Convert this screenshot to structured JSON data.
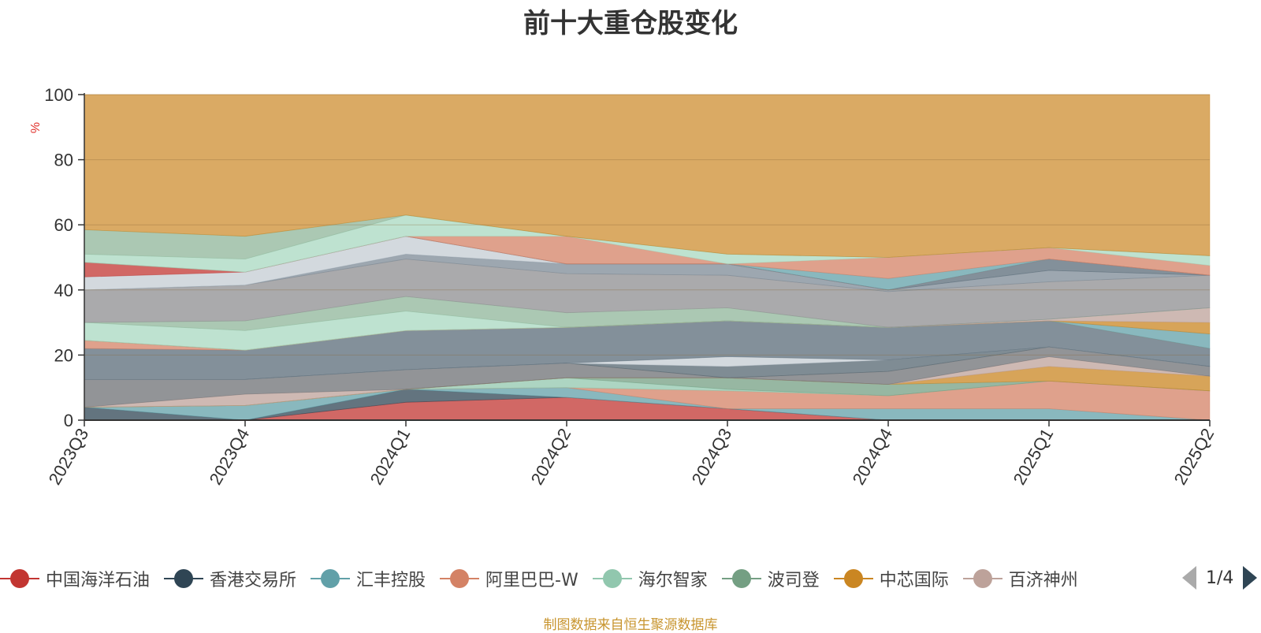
{
  "title": "前十大重仓股变化",
  "source": "制图数据来自恒生聚源数据库",
  "pager": {
    "text": "1/4"
  },
  "legend": [
    {
      "label": "中国海洋石油",
      "color": "#c23531"
    },
    {
      "label": "香港交易所",
      "color": "#2f4554"
    },
    {
      "label": "汇丰控股",
      "color": "#61a0a8"
    },
    {
      "label": "阿里巴巴-W",
      "color": "#d48265"
    },
    {
      "label": "海尔智家",
      "color": "#91c7ae"
    },
    {
      "label": "波司登",
      "color": "#749f83"
    },
    {
      "label": "中芯国际",
      "color": "#ca8622"
    },
    {
      "label": "百济神州",
      "color": "#bda29a"
    }
  ],
  "chart_data": {
    "type": "area",
    "stacked": true,
    "title": "前十大重仓股变化",
    "ylabel": "%",
    "ylim": [
      0,
      100
    ],
    "yticks": [
      0,
      20,
      40,
      60,
      80,
      100
    ],
    "categories": [
      "2023Q3",
      "2023Q4",
      "2024Q1",
      "2024Q2",
      "2024Q3",
      "2024Q4",
      "2025Q1",
      "2025Q2"
    ],
    "grid": true,
    "layers": [
      {
        "color": "#c23531",
        "top": [
          0,
          0,
          5.5,
          7,
          3.5,
          0,
          0,
          0
        ]
      },
      {
        "color": "#2f4554",
        "top": [
          4,
          0,
          9.5,
          7,
          3.5,
          0,
          0,
          0
        ]
      },
      {
        "color": "#61a0a8",
        "top": [
          4,
          4.5,
          9.5,
          10,
          3.5,
          3.5,
          3.5,
          0
        ]
      },
      {
        "color": "#d48265",
        "top": [
          4,
          4.5,
          9.5,
          10,
          9,
          7.5,
          12,
          9
        ]
      },
      {
        "color": "#91c7ae",
        "top": [
          4,
          4.5,
          9.5,
          13,
          9.5,
          7.5,
          12,
          9
        ]
      },
      {
        "color": "#749f83",
        "top": [
          4,
          4.5,
          9.5,
          13,
          13,
          11,
          12,
          9
        ]
      },
      {
        "color": "#ca8622",
        "top": [
          4,
          4.5,
          9.5,
          13,
          13,
          11,
          16.5,
          13.5
        ]
      },
      {
        "color": "#bda29a",
        "top": [
          4,
          8,
          9.5,
          13,
          13,
          11,
          19.5,
          13.5
        ]
      },
      {
        "color": "#6e7074",
        "top": [
          12.5,
          12.5,
          15.5,
          17.5,
          13,
          15,
          22.5,
          16.5
        ]
      },
      {
        "color": "#546570",
        "top": [
          12.5,
          12.5,
          15.5,
          17.5,
          16.5,
          18.5,
          22.5,
          16.5
        ]
      },
      {
        "color": "#c4ccd3",
        "top": [
          12.5,
          12.5,
          15.5,
          17.5,
          19.5,
          18.5,
          22.5,
          16.5
        ]
      },
      {
        "color": "#5a6b78",
        "top": [
          22,
          21.5,
          27.5,
          28.5,
          30.5,
          28.5,
          30.5,
          22
        ]
      },
      {
        "color": "#d48265",
        "top": [
          24.5,
          21.5,
          27.5,
          28.5,
          30.5,
          28.5,
          30.5,
          22
        ]
      },
      {
        "color": "#61a0a8",
        "top": [
          24.5,
          21.5,
          27.5,
          28.5,
          30.5,
          28.5,
          30.5,
          26.5
        ]
      },
      {
        "color": "#ca8622",
        "top": [
          24.5,
          21.5,
          27.5,
          28.5,
          30.5,
          28.5,
          30.5,
          30
        ]
      },
      {
        "color": "#bda29a",
        "top": [
          24.5,
          21.5,
          27.5,
          28.5,
          30.5,
          28.5,
          31,
          34.5
        ]
      },
      {
        "color": "#a8d8c0",
        "top": [
          30,
          27.5,
          33.5,
          28.5,
          30.5,
          28.5,
          31,
          34.5
        ]
      },
      {
        "color": "#8fb69a",
        "top": [
          30,
          30.5,
          38,
          33,
          34.5,
          28.5,
          31,
          34.5
        ]
      },
      {
        "color": "#8d8e90",
        "top": [
          40,
          41.5,
          49.5,
          45,
          44.5,
          39.5,
          42.5,
          44.5
        ]
      },
      {
        "color": "#7c8a95",
        "top": [
          40,
          41.5,
          51,
          48,
          48,
          40,
          46,
          44.5
        ]
      },
      {
        "color": "#5a6b78",
        "top": [
          40,
          41.5,
          51,
          48,
          48,
          40,
          49.5,
          44.5
        ]
      },
      {
        "color": "#c4ccd3",
        "top": [
          44,
          45.5,
          56.5,
          48,
          48,
          40,
          49.5,
          44.5
        ]
      },
      {
        "color": "#c23531",
        "top": [
          48.5,
          45.5,
          56.5,
          48,
          48,
          40,
          49.5,
          44.5
        ]
      },
      {
        "color": "#61a0a8",
        "top": [
          48.5,
          45.5,
          56.5,
          48,
          48,
          43.5,
          49.5,
          44.5
        ]
      },
      {
        "color": "#d48265",
        "top": [
          48.5,
          45.5,
          56.5,
          56.5,
          48,
          50,
          53,
          47.5
        ]
      },
      {
        "color": "#a8d8c0",
        "top": [
          51,
          49.5,
          63,
          56.5,
          51,
          50,
          53,
          50.5
        ]
      },
      {
        "color": "#8fb69a",
        "top": [
          58.5,
          56.5,
          63,
          56.5,
          51,
          50,
          53,
          50.5
        ]
      },
      {
        "color": "#ca8622",
        "top": [
          100,
          100,
          100,
          100,
          100,
          100,
          100,
          100
        ]
      }
    ]
  }
}
